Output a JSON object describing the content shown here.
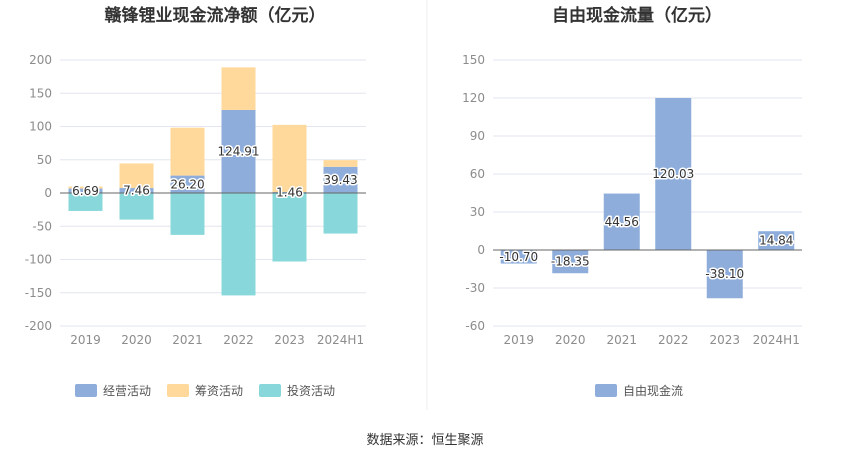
{
  "source_text": "数据来源：恒生聚源",
  "colors": {
    "operating": "#8EADDB",
    "financing": "#FFD99B",
    "investing": "#88D8DB",
    "fcf": "#8EADDB",
    "grid": "#E3E6F0",
    "axis_text": "#8C8C8C",
    "title": "#333333"
  },
  "chart_data": [
    {
      "type": "bar",
      "stacked": true,
      "title": "赣锋锂业现金流净额（亿元）",
      "categories": [
        "2019",
        "2020",
        "2021",
        "2022",
        "2023",
        "2024H1"
      ],
      "ylim": [
        -200,
        200
      ],
      "yticks": [
        200,
        150,
        100,
        50,
        0,
        -50,
        -100,
        -150,
        -200
      ],
      "grid": true,
      "legend_position": "bottom",
      "series": [
        {
          "name": "经营活动",
          "key": "operating",
          "values": [
            6.69,
            7.46,
            26.2,
            124.91,
            1.46,
            39.43
          ],
          "labels": [
            "6.69",
            "7.46",
            "26.20",
            "124.91",
            "1.46",
            "39.43"
          ]
        },
        {
          "name": "筹资活动",
          "key": "financing",
          "values": [
            3.0,
            37.0,
            72.0,
            64.0,
            101.0,
            10.0
          ]
        },
        {
          "name": "投资活动",
          "key": "investing",
          "values": [
            -27.0,
            -40.0,
            -63.0,
            -154.0,
            -103.0,
            -61.0
          ]
        }
      ]
    },
    {
      "type": "bar",
      "title": "自由现金流量（亿元）",
      "categories": [
        "2019",
        "2020",
        "2021",
        "2022",
        "2023",
        "2024H1"
      ],
      "ylim": [
        -60,
        150
      ],
      "yticks": [
        150,
        120,
        90,
        60,
        30,
        0,
        -30,
        -60
      ],
      "grid": true,
      "legend_position": "bottom",
      "series": [
        {
          "name": "自由现金流",
          "key": "fcf",
          "values": [
            -10.7,
            -18.35,
            44.56,
            120.03,
            -38.1,
            14.84
          ],
          "labels": [
            "-10.70",
            "-18.35",
            "44.56",
            "120.03",
            "-38.10",
            "14.84"
          ]
        }
      ]
    }
  ]
}
